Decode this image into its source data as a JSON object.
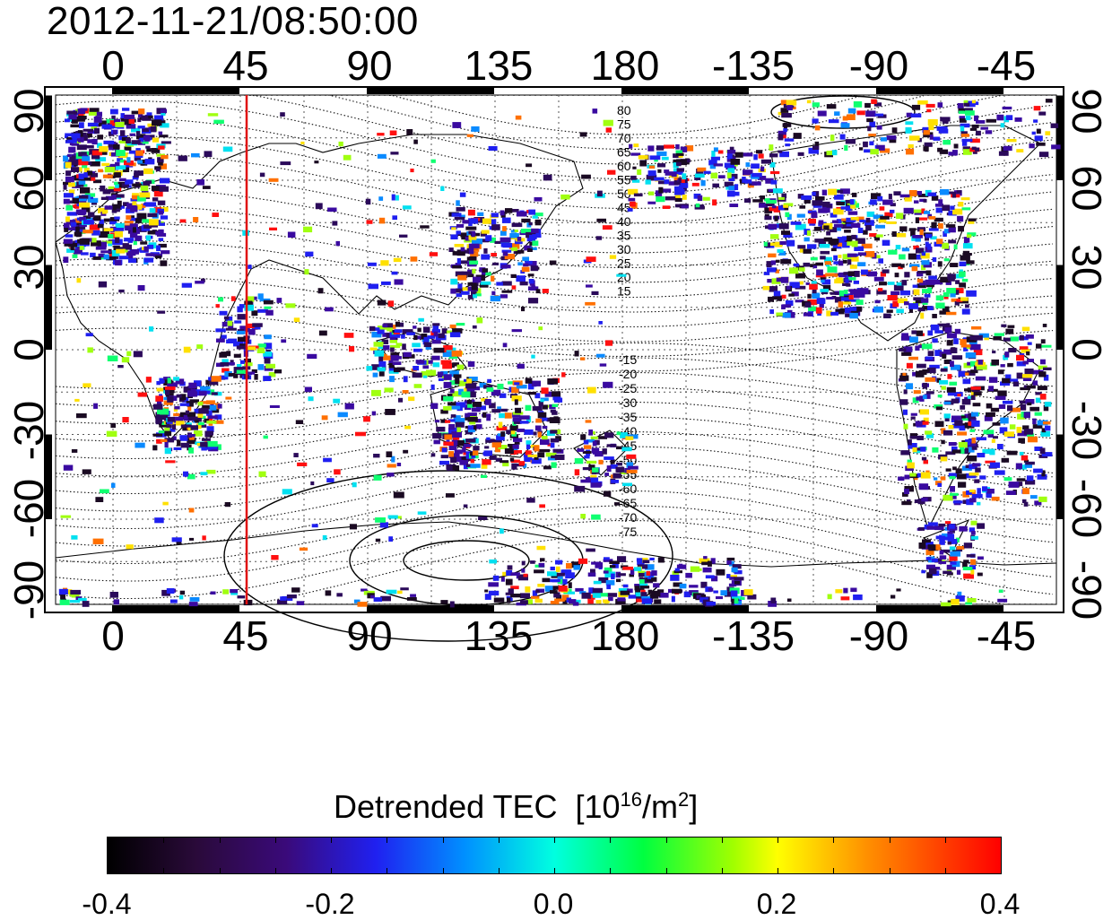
{
  "timestamp": "2012-11-21/08:50:00",
  "map": {
    "top_lon_ticks": [
      "0",
      "45",
      "90",
      "135",
      "180",
      "-135",
      "-90",
      "-45"
    ],
    "bottom_lon_ticks": [
      "0",
      "45",
      "90",
      "135",
      "180",
      "-135",
      "-90",
      "-45"
    ],
    "left_lat_ticks": [
      "90",
      "60",
      "30",
      "0",
      "-30",
      "-60",
      "-90"
    ],
    "right_lat_ticks": [
      "90",
      "60",
      "30",
      "0",
      "-30",
      "-60",
      "-90"
    ],
    "contour_labels_north": [
      "80",
      "75",
      "70",
      "65",
      "60",
      "55",
      "50",
      "45",
      "40",
      "35",
      "30",
      "25",
      "20",
      "15"
    ],
    "contour_labels_south": [
      "-15",
      "-20",
      "-25",
      "-30",
      "-35",
      "-40",
      "-45",
      "-50",
      "-55",
      "-60",
      "-65",
      "-70",
      "-75"
    ],
    "marker_line_lon": 48,
    "marker_color": "#e01010"
  },
  "colorbar": {
    "title": "Detrended TEC",
    "unit_base": "[10",
    "unit_exp": "16",
    "unit_mid": "/m",
    "unit_exp2": "2",
    "unit_end": "]",
    "ticks": [
      "-0.4",
      "-0.2",
      "0.0",
      "0.2",
      "0.4"
    ],
    "min": -0.4,
    "max": 0.4
  }
}
